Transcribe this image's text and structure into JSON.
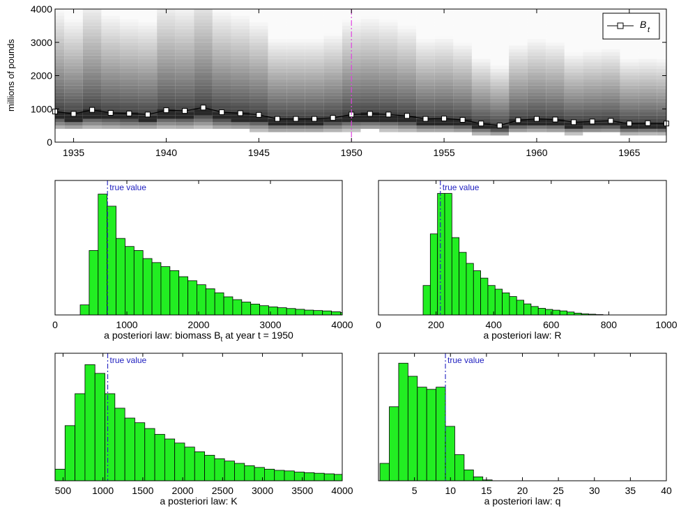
{
  "chart_data": [
    {
      "type": "line",
      "id": "biomass-time-series",
      "ylabel": "millions of pounds",
      "xlim": [
        1934,
        1967
      ],
      "ylim": [
        0,
        4000
      ],
      "xticks": [
        1935,
        1940,
        1945,
        1950,
        1955,
        1960,
        1965
      ],
      "yticks": [
        0,
        1000,
        2000,
        3000,
        4000
      ],
      "vline_x": 1950,
      "legend": {
        "label": "B",
        "subscript": "t",
        "placement": "top-right"
      },
      "series": [
        {
          "name": "B_t",
          "x": [
            1934,
            1935,
            1936,
            1937,
            1938,
            1939,
            1940,
            1941,
            1942,
            1943,
            1944,
            1945,
            1946,
            1947,
            1948,
            1949,
            1950,
            1951,
            1952,
            1953,
            1954,
            1955,
            1956,
            1957,
            1958,
            1959,
            1960,
            1961,
            1962,
            1963,
            1964,
            1965,
            1966,
            1967
          ],
          "values": [
            920,
            850,
            970,
            880,
            860,
            830,
            960,
            940,
            1040,
            900,
            870,
            820,
            700,
            700,
            700,
            730,
            830,
            850,
            830,
            790,
            700,
            710,
            670,
            560,
            500,
            660,
            700,
            680,
            600,
            620,
            640,
            560,
            570,
            560
          ]
        }
      ],
      "band": {
        "description_values_low": [
          700,
          650,
          720,
          690,
          660,
          650,
          720,
          700,
          760,
          660,
          640,
          600,
          520,
          520,
          520,
          560,
          620,
          640,
          620,
          580,
          520,
          520,
          490,
          410,
          360,
          490,
          520,
          500,
          440,
          460,
          470,
          400,
          410,
          400
        ],
        "description_values_high": [
          1400,
          1300,
          1500,
          1350,
          1300,
          1280,
          1500,
          1450,
          1600,
          1400,
          1350,
          1280,
          1100,
          1100,
          1100,
          1150,
          1300,
          1330,
          1300,
          1230,
          1100,
          1120,
          1060,
          900,
          820,
          1040,
          1100,
          1070,
          950,
          980,
          1000,
          890,
          900,
          890
        ]
      }
    },
    {
      "type": "bar",
      "id": "hist-biomass",
      "xlabel": "a posteriori law: biomass B",
      "xlabel_sub": "t",
      "xlabel_tail": " at year t = 1950",
      "xlim": [
        0,
        4000
      ],
      "xticks": [
        0,
        1000,
        2000,
        3000,
        4000
      ],
      "bin_start": 350,
      "bin_width": 125,
      "values": [
        2.5,
        16,
        30,
        27,
        19,
        17,
        16,
        14,
        13,
        12,
        11,
        9.5,
        8.5,
        7.5,
        6.5,
        5.5,
        4.5,
        3.8,
        3.2,
        2.7,
        2.3,
        2,
        1.8,
        1.6,
        1.4,
        1.2,
        1.1,
        1,
        0.8,
        0.6
      ],
      "ymax": 32,
      "true_value": 730,
      "true_label": "true value"
    },
    {
      "type": "bar",
      "id": "hist-r",
      "xlabel": "a posteriori law: R",
      "xlim": [
        0,
        1000
      ],
      "xticks": [
        0,
        200,
        400,
        600,
        800,
        1000
      ],
      "bin_start": 155,
      "bin_width": 25,
      "values": [
        8,
        22,
        33,
        33,
        21,
        17,
        14,
        12,
        10,
        8,
        7,
        6,
        5,
        4,
        3,
        2.3,
        1.8,
        1.5,
        1.3,
        1.1,
        0.8,
        0.5,
        0.3,
        0.2,
        0.1
      ],
      "ymax": 35,
      "true_value": 215,
      "true_label": "true value"
    },
    {
      "type": "bar",
      "id": "hist-k",
      "xlabel": "a posteriori law: K",
      "xlim": [
        400,
        4000
      ],
      "xticks": [
        500,
        1000,
        1500,
        2000,
        2500,
        3000,
        3500,
        4000
      ],
      "bin_start": 400,
      "bin_width": 125,
      "values": [
        2,
        9.5,
        15,
        20,
        18.5,
        15,
        12.5,
        10.8,
        10,
        9,
        8,
        7.2,
        6.5,
        5.8,
        5,
        4.4,
        3.8,
        3.4,
        3,
        2.6,
        2.3,
        2,
        1.8,
        1.7,
        1.5,
        1.4,
        1.3,
        1.2,
        1.1
      ],
      "ymax": 21,
      "true_value": 1060,
      "true_label": "true value"
    },
    {
      "type": "bar",
      "id": "hist-q",
      "xlabel": "a posteriori law: q",
      "xlim": [
        0,
        40
      ],
      "xticks": [
        5,
        10,
        15,
        20,
        25,
        30,
        35,
        40
      ],
      "bin_start": 0.2,
      "bin_width": 1.3,
      "values": [
        4,
        17,
        27,
        24,
        21.5,
        21,
        21.5,
        12.5,
        6,
        2.5,
        0.9,
        0.2
      ],
      "ymax": 28,
      "true_value": 9.3,
      "true_label": "true value"
    }
  ]
}
